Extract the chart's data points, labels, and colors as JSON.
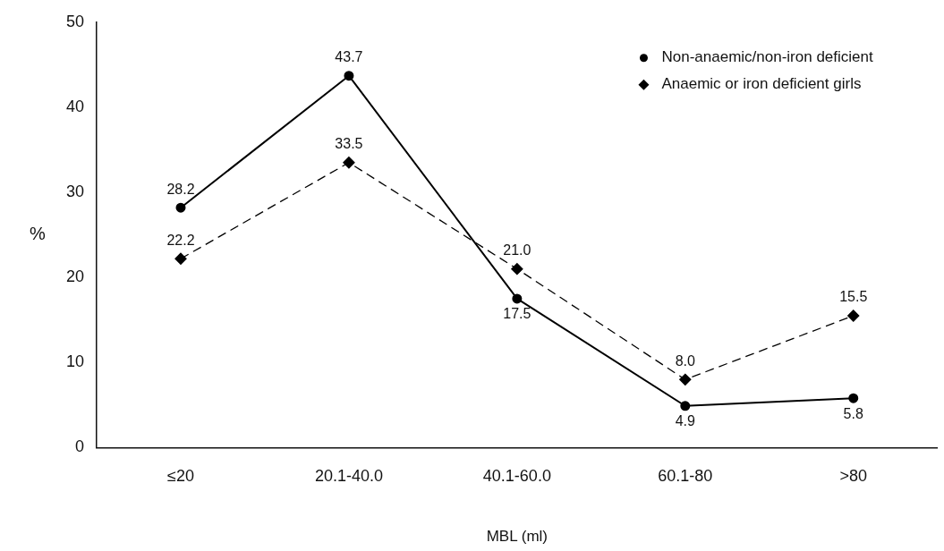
{
  "chart_data": {
    "type": "line",
    "xlabel": "MBL (ml)",
    "ylabel": "%",
    "categories": [
      "≤20",
      "20.1-40.0",
      "40.1-60.0",
      "60.1-80",
      ">80"
    ],
    "series": [
      {
        "name": "Non-anaemic/non-iron deficient",
        "color": "#000000",
        "marker": "circle",
        "line_style": "solid",
        "values": [
          28.2,
          43.7,
          17.5,
          4.9,
          5.8
        ],
        "value_labels": [
          "28.2",
          "43.7",
          "17.5",
          "4.9",
          "5.8"
        ]
      },
      {
        "name": "Anaemic or iron deficient girls",
        "color": "#000000",
        "marker": "diamond",
        "line_style": "dashed",
        "values": [
          22.2,
          33.5,
          21.0,
          8.0,
          15.5
        ],
        "value_labels": [
          "22.2",
          "33.5",
          "21.0",
          "8.0",
          "15.5"
        ]
      }
    ],
    "ylim": [
      0,
      50
    ],
    "yticks": [
      0,
      10,
      20,
      30,
      40,
      50
    ],
    "grid": false,
    "legend": "top right"
  }
}
